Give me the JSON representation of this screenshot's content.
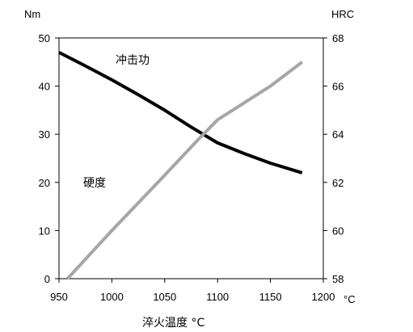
{
  "chart_data": {
    "type": "line",
    "xlabel": "淬火温度 °C",
    "x_unit": "°C",
    "y_left_unit": "Nm",
    "y_right_unit": "HRC",
    "xlim": [
      950,
      1200
    ],
    "ylim_left": [
      0,
      50
    ],
    "ylim_right": [
      58,
      68
    ],
    "x_ticks": [
      950,
      1000,
      1050,
      1100,
      1150,
      1200
    ],
    "y_left_ticks": [
      0,
      10,
      20,
      30,
      40,
      50
    ],
    "y_right_ticks": [
      58,
      60,
      62,
      64,
      66,
      68
    ],
    "grid": false,
    "series": [
      {
        "name": "冲击功",
        "axis": "left",
        "color": "#000000",
        "x": [
          950,
          975,
          1000,
          1025,
          1050,
          1075,
          1100,
          1125,
          1150,
          1180
        ],
        "values": [
          47.0,
          44.2,
          41.3,
          38.2,
          35.0,
          31.5,
          28.2,
          26.0,
          24.0,
          22.0
        ]
      },
      {
        "name": "硬度",
        "axis": "right",
        "color": "#a6a6a6",
        "x": [
          958,
          1000,
          1050,
          1080,
          1100,
          1150,
          1180
        ],
        "values": [
          58.0,
          60.0,
          62.3,
          63.7,
          64.6,
          66.0,
          67.0
        ]
      }
    ]
  }
}
